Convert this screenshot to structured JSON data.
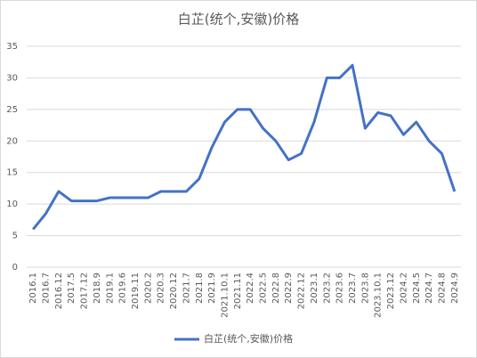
{
  "chart_data": {
    "type": "line",
    "title": "白芷(统个,安徽)价格",
    "categories": [
      "2016.1",
      "2016.7",
      "2016.12",
      "2017.5",
      "2017.12",
      "2018.9",
      "2019.1",
      "2019.6",
      "2019.11",
      "2020.2",
      "2020.3",
      "2020.12",
      "2021.7",
      "2021.8",
      "2021.9",
      "2021.10.1",
      "2021.11",
      "2022.4",
      "2022.5",
      "2022.8",
      "2022.9",
      "2022.12",
      "2023.1",
      "2023.2",
      "2023.6",
      "2023.7",
      "2023.8",
      "2023.10.1",
      "2023.12",
      "2024.2",
      "2024.5",
      "2024.7",
      "2024.8",
      "2024.9"
    ],
    "series": [
      {
        "name": "白芷(统个,安徽)价格",
        "color": "#4472c4",
        "values": [
          6,
          8.5,
          12,
          10.5,
          10.5,
          10.5,
          11,
          11,
          11,
          11,
          12,
          12,
          12,
          14,
          19,
          23,
          25,
          25,
          22,
          20,
          17,
          18,
          23,
          30,
          30,
          32,
          22,
          24.5,
          24,
          21,
          23,
          20,
          18,
          12
        ]
      }
    ],
    "ylim": [
      0,
      35
    ],
    "yticks": [
      0,
      5,
      10,
      15,
      20,
      25,
      30,
      35
    ],
    "grid": true,
    "legend": "bottom"
  }
}
